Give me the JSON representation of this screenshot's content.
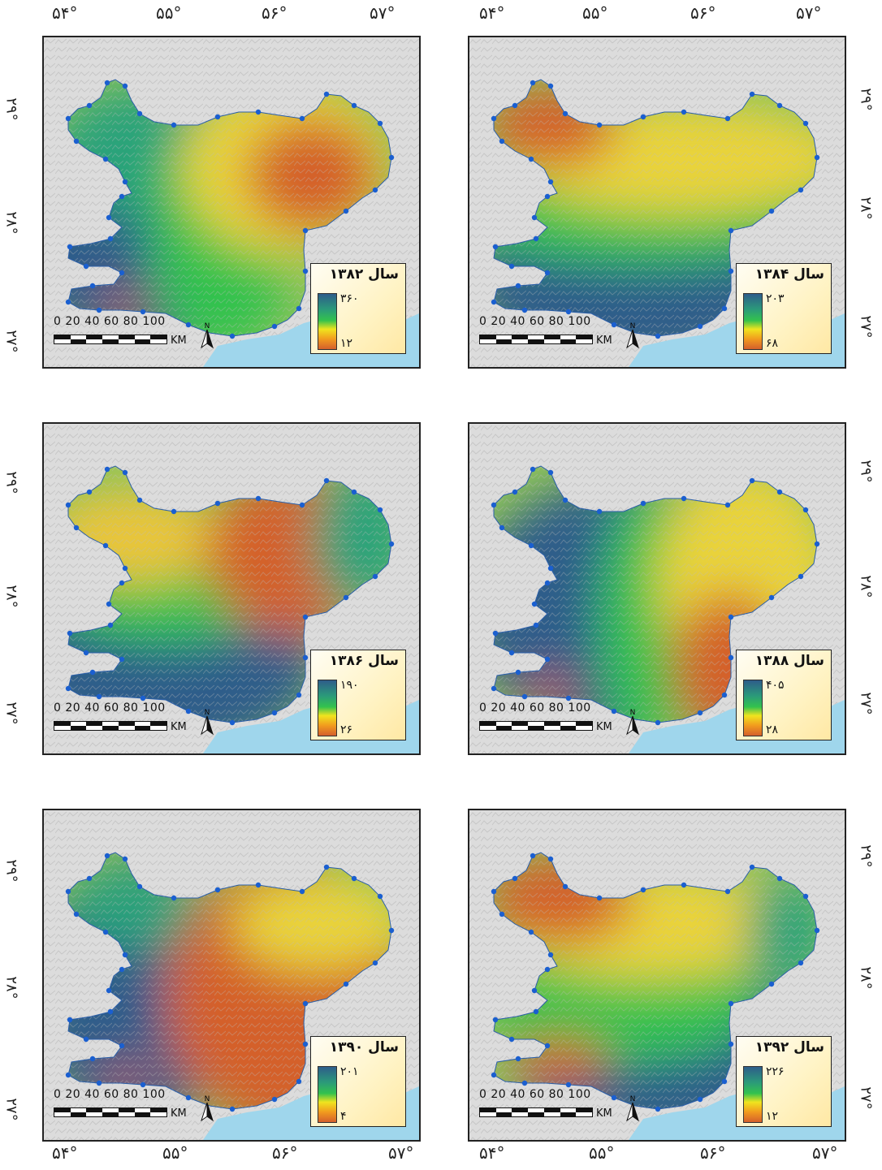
{
  "axes": {
    "lon_ticks": [
      "۵۴°",
      "۵۵°",
      "۵۶°",
      "۵۷°"
    ],
    "lat_ticks": [
      "۲۹°",
      "۲۸°",
      "۲۷°"
    ]
  },
  "panels": [
    {
      "legend_title": "سال ۱۳۸۲",
      "max": "۳۶۰",
      "min": "۱۲"
    },
    {
      "legend_title": "سال ۱۳۸۴",
      "max": "۲۰۳",
      "min": "۶۸"
    },
    {
      "legend_title": "سال ۱۳۸۶",
      "max": "۱۹۰",
      "min": "۲۶"
    },
    {
      "legend_title": "سال ۱۳۸۸",
      "max": "۴۰۵",
      "min": "۲۸"
    },
    {
      "legend_title": "سال ۱۳۹۰",
      "max": "۲۰۱",
      "min": "۴"
    },
    {
      "legend_title": "سال ۱۳۹۲",
      "max": "۲۲۶",
      "min": "۱۲"
    }
  ],
  "scalebar": {
    "numbers": "0  20  40  60  80 100",
    "unit": "KM"
  },
  "north_label": "N",
  "colors": {
    "high": "#2e5d8a",
    "mid": "#33c24d",
    "low_mid": "#f0e41e",
    "low": "#d4602c",
    "water": "#9fd6ec",
    "station": "#1a5fd0"
  }
}
